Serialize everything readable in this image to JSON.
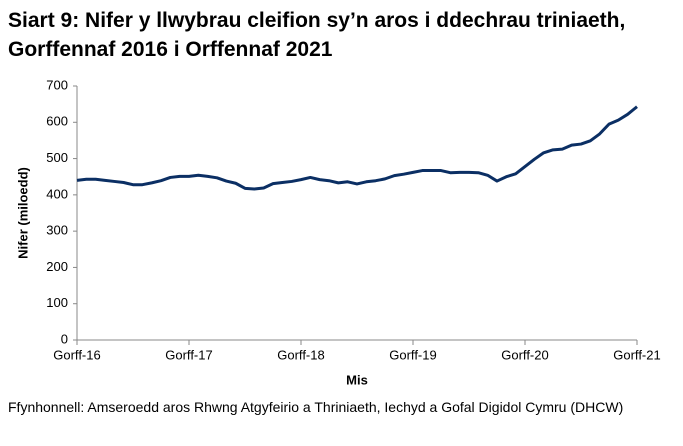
{
  "chart_data": {
    "type": "line",
    "title": "Siart 9: Nifer y llwybrau cleifion sy’n aros i ddechrau triniaeth, Gorffennaf 2016 i Orffennaf 2021",
    "x_label": "Mis",
    "y_label": "Nifer (miloedd)",
    "source": "Ffynhonnell: Amseroedd aros Rhwng Atgyfeirio a Thriniaeth, Iechyd a Gofal Digidol Cymru (DHCW)",
    "categories": [
      "Gorff-16",
      null,
      null,
      null,
      null,
      null,
      null,
      null,
      null,
      null,
      null,
      null,
      "Gorff-17",
      null,
      null,
      null,
      null,
      null,
      null,
      null,
      null,
      null,
      null,
      null,
      "Gorff-18",
      null,
      null,
      null,
      null,
      null,
      null,
      null,
      null,
      null,
      null,
      null,
      "Gorff-19",
      null,
      null,
      null,
      null,
      null,
      null,
      null,
      null,
      null,
      null,
      null,
      "Gorff-20",
      null,
      null,
      null,
      null,
      null,
      null,
      null,
      null,
      null,
      null,
      null,
      "Gorff-21"
    ],
    "series": [
      {
        "name": "Nifer",
        "color": "#0b2f64",
        "values": [
          440,
          443,
          443,
          440,
          437,
          434,
          428,
          428,
          433,
          439,
          448,
          451,
          451,
          454,
          451,
          447,
          438,
          432,
          418,
          416,
          419,
          431,
          434,
          437,
          442,
          448,
          442,
          439,
          433,
          436,
          430,
          436,
          439,
          444,
          453,
          457,
          462,
          467,
          467,
          467,
          461,
          462,
          462,
          461,
          454,
          438,
          450,
          458,
          478,
          498,
          516,
          524,
          526,
          537,
          540,
          549,
          568,
          595,
          606,
          622,
          643
        ]
      }
    ],
    "ylim": [
      0,
      700
    ],
    "yticks": [
      0,
      100,
      200,
      300,
      400,
      500,
      600,
      700
    ],
    "grid": false
  }
}
